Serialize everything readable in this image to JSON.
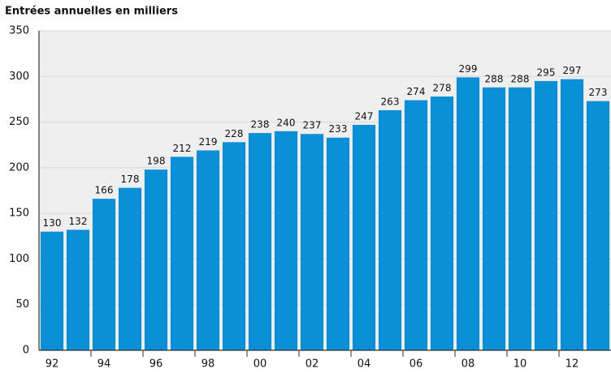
{
  "chart_data": {
    "type": "bar",
    "title": "Entrées annuelles en milliers",
    "categories": [
      "92",
      null,
      "94",
      null,
      "96",
      null,
      "98",
      null,
      "00",
      null,
      "02",
      null,
      "04",
      null,
      "06",
      null,
      "08",
      null,
      "10",
      null,
      "12",
      null
    ],
    "values": [
      130,
      132,
      166,
      178,
      198,
      212,
      219,
      228,
      238,
      240,
      237,
      233,
      247,
      263,
      274,
      278,
      299,
      288,
      288,
      295,
      297,
      273
    ],
    "color": "#0b8fd6",
    "ylim": [
      0,
      350
    ],
    "yticks": [
      0,
      50,
      100,
      150,
      200,
      250,
      300,
      350
    ],
    "grid": true
  }
}
